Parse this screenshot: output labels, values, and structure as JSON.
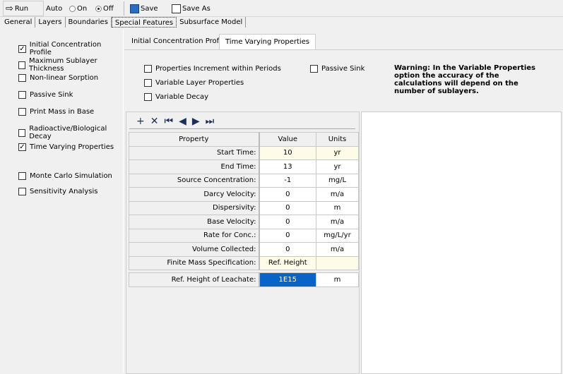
{
  "toolbar": {
    "run": "Run",
    "auto": "Auto",
    "on": "On",
    "off": "Off",
    "auto_mode": "Off",
    "save": "Save",
    "save_as": "Save As"
  },
  "tabs": [
    "General",
    "Layers",
    "Boundaries",
    "Special Features",
    "Subsurface Model"
  ],
  "selected_tab": "Special Features",
  "features": [
    {
      "label": "Initial Concentration Profile",
      "checked": true
    },
    {
      "label": "Maximum Sublayer Thickness",
      "checked": false
    },
    {
      "label": "Non-linear Sorption",
      "checked": false
    },
    {
      "label": "Passive Sink",
      "checked": false
    },
    {
      "label": "Print Mass in Base",
      "checked": false
    },
    {
      "label": "Radioactive/Biological Decay",
      "checked": false
    },
    {
      "label": "Time Varying Properties",
      "checked": true
    },
    {
      "label": "Monte Carlo Simulation",
      "checked": false
    },
    {
      "label": "Sensitivity Analysis",
      "checked": false
    }
  ],
  "inner_tabs": [
    "Initial Concentration Profile",
    "Time Varying Properties"
  ],
  "options": [
    {
      "label": "Properties Increment within Periods",
      "checked": false
    },
    {
      "label": "Variable Layer Properties",
      "checked": false
    },
    {
      "label": "Variable Decay",
      "checked": false
    },
    {
      "label": "Passive Sink",
      "checked": false
    }
  ],
  "warning": "Warning: In the Variable Properties option the accuracy of the calculations will depend on the number of sublayers.",
  "grid_toolbar": [
    "add-icon",
    "delete-icon",
    "first-icon",
    "prev-icon",
    "next-icon",
    "last-icon"
  ],
  "table": {
    "headers": [
      "Property",
      "Value",
      "Units"
    ],
    "rows": [
      [
        "Start Time:",
        "10",
        "yr"
      ],
      [
        "End Time:",
        "13",
        "yr"
      ],
      [
        "Source Concentration:",
        "-1",
        "mg/L"
      ],
      [
        "Darcy Velocity:",
        "0",
        "m/a"
      ],
      [
        "Dispersivity:",
        "0",
        "m"
      ],
      [
        "Base Velocity:",
        "0",
        "m/a"
      ],
      [
        "Rate for Conc.:",
        "0",
        "mg/L/yr"
      ],
      [
        "Volume Collected:",
        "0",
        "m/a"
      ],
      [
        "Finite Mass Specification:",
        "Ref. Height",
        ""
      ]
    ],
    "extra_row": [
      "Ref. Height of Leachate:",
      "1E15",
      "m"
    ]
  }
}
